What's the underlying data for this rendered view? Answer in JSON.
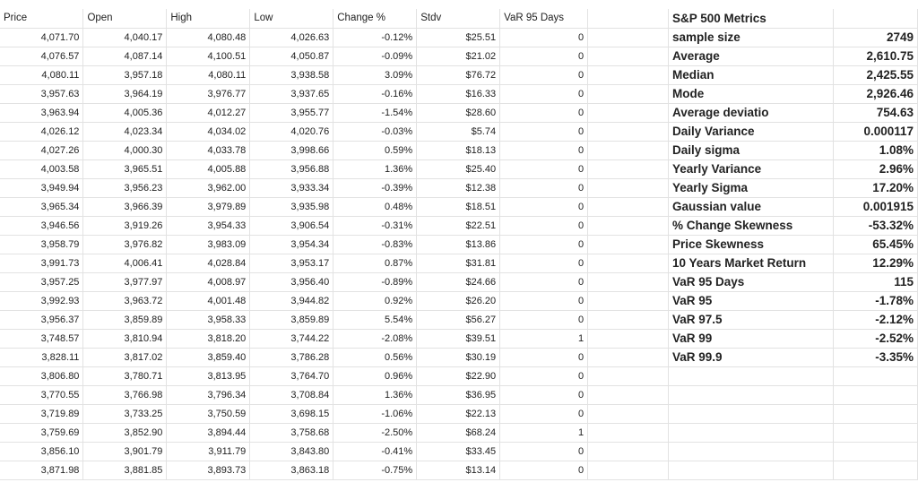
{
  "headers": [
    "Price",
    "Open",
    "High",
    "Low",
    "Change %",
    "Stdv",
    "VaR 95 Days"
  ],
  "rows": [
    [
      "4,071.70",
      "4,040.17",
      "4,080.48",
      "4,026.63",
      "-0.12%",
      "$25.51",
      "0"
    ],
    [
      "4,076.57",
      "4,087.14",
      "4,100.51",
      "4,050.87",
      "-0.09%",
      "$21.02",
      "0"
    ],
    [
      "4,080.11",
      "3,957.18",
      "4,080.11",
      "3,938.58",
      "3.09%",
      "$76.72",
      "0"
    ],
    [
      "3,957.63",
      "3,964.19",
      "3,976.77",
      "3,937.65",
      "-0.16%",
      "$16.33",
      "0"
    ],
    [
      "3,963.94",
      "4,005.36",
      "4,012.27",
      "3,955.77",
      "-1.54%",
      "$28.60",
      "0"
    ],
    [
      "4,026.12",
      "4,023.34",
      "4,034.02",
      "4,020.76",
      "-0.03%",
      "$5.74",
      "0"
    ],
    [
      "4,027.26",
      "4,000.30",
      "4,033.78",
      "3,998.66",
      "0.59%",
      "$18.13",
      "0"
    ],
    [
      "4,003.58",
      "3,965.51",
      "4,005.88",
      "3,956.88",
      "1.36%",
      "$25.40",
      "0"
    ],
    [
      "3,949.94",
      "3,956.23",
      "3,962.00",
      "3,933.34",
      "-0.39%",
      "$12.38",
      "0"
    ],
    [
      "3,965.34",
      "3,966.39",
      "3,979.89",
      "3,935.98",
      "0.48%",
      "$18.51",
      "0"
    ],
    [
      "3,946.56",
      "3,919.26",
      "3,954.33",
      "3,906.54",
      "-0.31%",
      "$22.51",
      "0"
    ],
    [
      "3,958.79",
      "3,976.82",
      "3,983.09",
      "3,954.34",
      "-0.83%",
      "$13.86",
      "0"
    ],
    [
      "3,991.73",
      "4,006.41",
      "4,028.84",
      "3,953.17",
      "0.87%",
      "$31.81",
      "0"
    ],
    [
      "3,957.25",
      "3,977.97",
      "4,008.97",
      "3,956.40",
      "-0.89%",
      "$24.66",
      "0"
    ],
    [
      "3,992.93",
      "3,963.72",
      "4,001.48",
      "3,944.82",
      "0.92%",
      "$26.20",
      "0"
    ],
    [
      "3,956.37",
      "3,859.89",
      "3,958.33",
      "3,859.89",
      "5.54%",
      "$56.27",
      "0"
    ],
    [
      "3,748.57",
      "3,810.94",
      "3,818.20",
      "3,744.22",
      "-2.08%",
      "$39.51",
      "1"
    ],
    [
      "3,828.11",
      "3,817.02",
      "3,859.40",
      "3,786.28",
      "0.56%",
      "$30.19",
      "0"
    ],
    [
      "3,806.80",
      "3,780.71",
      "3,813.95",
      "3,764.70",
      "0.96%",
      "$22.90",
      "0"
    ],
    [
      "3,770.55",
      "3,766.98",
      "3,796.34",
      "3,708.84",
      "1.36%",
      "$36.95",
      "0"
    ],
    [
      "3,719.89",
      "3,733.25",
      "3,750.59",
      "3,698.15",
      "-1.06%",
      "$22.13",
      "0"
    ],
    [
      "3,759.69",
      "3,852.90",
      "3,894.44",
      "3,758.68",
      "-2.50%",
      "$68.24",
      "1"
    ],
    [
      "3,856.10",
      "3,901.79",
      "3,911.79",
      "3,843.80",
      "-0.41%",
      "$33.45",
      "0"
    ],
    [
      "3,871.98",
      "3,881.85",
      "3,893.73",
      "3,863.18",
      "-0.75%",
      "$13.14",
      "0"
    ]
  ],
  "metrics": {
    "title": "S&P 500 Metrics",
    "items": [
      {
        "label": "sample size",
        "value": "2749"
      },
      {
        "label": "Average",
        "value": "2,610.75"
      },
      {
        "label": "Median",
        "value": "2,425.55"
      },
      {
        "label": "Mode",
        "value": "2,926.46"
      },
      {
        "label": "Average deviatio",
        "value": "754.63"
      },
      {
        "label": "Daily Variance",
        "value": "0.000117"
      },
      {
        "label": "Daily sigma",
        "value": "1.08%"
      },
      {
        "label": "Yearly Variance",
        "value": "2.96%"
      },
      {
        "label": "Yearly Sigma",
        "value": "17.20%"
      },
      {
        "label": "Gaussian value",
        "value": "0.001915"
      },
      {
        "label": "% Change Skewness",
        "value": "-53.32%"
      },
      {
        "label": "Price Skewness",
        "value": "65.45%"
      },
      {
        "label": "10 Years Market Return",
        "value": "12.29%"
      },
      {
        "label": "VaR 95 Days",
        "value": "115"
      },
      {
        "label": "VaR 95",
        "value": "-1.78%"
      },
      {
        "label": "VaR 97.5",
        "value": "-2.12%"
      },
      {
        "label": "VaR 99",
        "value": "-2.52%"
      },
      {
        "label": "VaR 99.9",
        "value": "-3.35%"
      }
    ]
  }
}
